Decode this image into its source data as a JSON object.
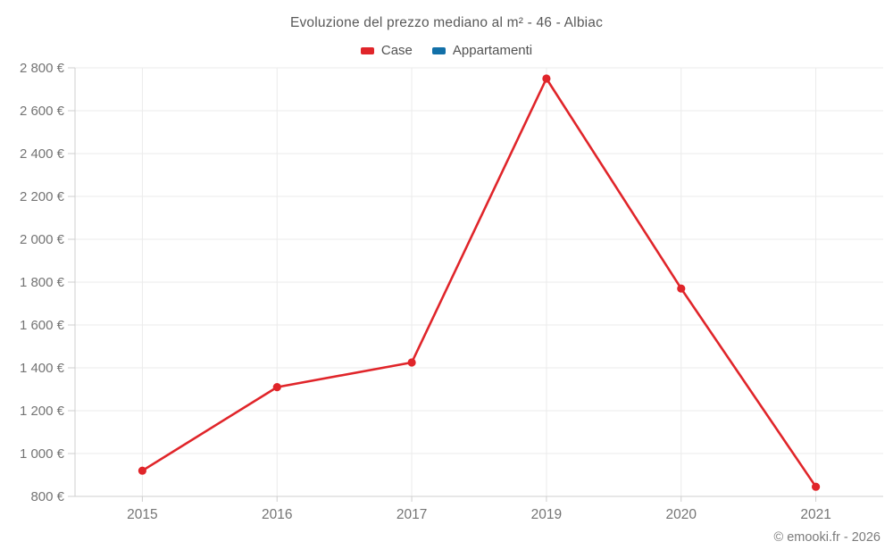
{
  "title": "Evoluzione del prezzo mediano al m² - 46 - Albiac",
  "footer": "© emooki.fr - 2026",
  "legend": [
    {
      "label": "Case",
      "color": "#e0252a"
    },
    {
      "label": "Appartamenti",
      "color": "#1270a8"
    }
  ],
  "chart_data": {
    "type": "line",
    "title": "Evoluzione del prezzo mediano al m² - 46 - Albiac",
    "categories": [
      "2015",
      "2016",
      "2017",
      "2019",
      "2020",
      "2021"
    ],
    "series": [
      {
        "name": "Case",
        "color": "#e0252a",
        "values": [
          920,
          1310,
          1425,
          2750,
          1770,
          845
        ]
      },
      {
        "name": "Appartamenti",
        "color": "#1270a8",
        "values": []
      }
    ],
    "xlabel": "",
    "ylabel": "",
    "ylim": [
      800,
      2800
    ],
    "ytick_step": 200,
    "ytick_labels": [
      "800 €",
      "1 000 €",
      "1 200 €",
      "1 400 €",
      "1 600 €",
      "1 800 €",
      "2 000 €",
      "2 200 €",
      "2 400 €",
      "2 600 €",
      "2 800 €"
    ],
    "grid": true,
    "legend_position": "top"
  },
  "colors": {
    "background": "#ffffff",
    "grid": "#ebebeb",
    "axis": "#cfcfcf",
    "tick_label": "#747474",
    "title": "#595959",
    "footer": "#7b7b7b"
  }
}
